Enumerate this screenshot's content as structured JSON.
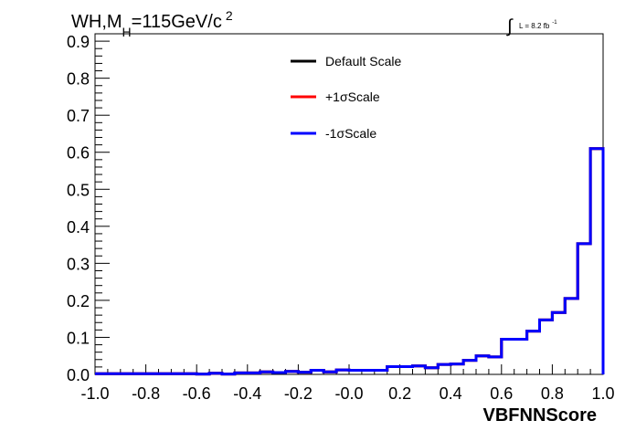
{
  "chart_data": {
    "type": "line",
    "title": "WH,M",
    "title_sub": "H",
    "title_rest": "=115GeV/c",
    "title_sup": "2",
    "annotation": {
      "integral_symbol": "∫",
      "text": "L = 8.2 fb",
      "superscript": "-1"
    },
    "xlabel": "VBFNNScore",
    "ylabel": "",
    "xlim": [
      -1.0,
      1.0
    ],
    "ylim": [
      0.0,
      0.92
    ],
    "x_tick_labels": [
      "-1.0",
      "-0.8",
      "-0.6",
      "-0.4",
      "-0.2",
      "-0.0",
      "0.2",
      "0.4",
      "0.6",
      "0.8",
      "1.0"
    ],
    "y_tick_labels": [
      "0.0",
      "0.1",
      "0.2",
      "0.3",
      "0.4",
      "0.5",
      "0.6",
      "0.7",
      "0.8",
      "0.9"
    ],
    "grid": false,
    "legend_position": "top-center",
    "bin_edges": [
      -1.0,
      -0.95,
      -0.9,
      -0.85,
      -0.8,
      -0.75,
      -0.7,
      -0.65,
      -0.6,
      -0.55,
      -0.5,
      -0.45,
      -0.4,
      -0.35,
      -0.3,
      -0.25,
      -0.2,
      -0.15,
      -0.1,
      -0.05,
      0.0,
      0.05,
      0.1,
      0.15,
      0.2,
      0.25,
      0.3,
      0.35,
      0.4,
      0.45,
      0.5,
      0.55,
      0.6,
      0.65,
      0.7,
      0.75,
      0.8,
      0.85,
      0.9,
      0.95,
      1.0
    ],
    "series": [
      {
        "name": "Default Scale",
        "color": "#000000",
        "values": [
          0.002,
          0.002,
          0.002,
          0.002,
          0.002,
          0.002,
          0.002,
          0.002,
          0.001,
          0.003,
          0.001,
          0.004,
          0.004,
          0.007,
          0.005,
          0.008,
          0.006,
          0.011,
          0.007,
          0.012,
          0.011,
          0.011,
          0.011,
          0.021,
          0.021,
          0.023,
          0.018,
          0.027,
          0.028,
          0.038,
          0.05,
          0.047,
          0.095,
          0.095,
          0.117,
          0.147,
          0.167,
          0.205,
          0.353,
          0.61
        ]
      },
      {
        "name": "+1σScale",
        "color": "#ff0000",
        "values": [
          0.002,
          0.002,
          0.002,
          0.002,
          0.002,
          0.002,
          0.002,
          0.002,
          0.001,
          0.003,
          0.001,
          0.004,
          0.004,
          0.007,
          0.005,
          0.008,
          0.006,
          0.011,
          0.007,
          0.012,
          0.011,
          0.011,
          0.011,
          0.021,
          0.021,
          0.023,
          0.018,
          0.027,
          0.028,
          0.038,
          0.05,
          0.047,
          0.095,
          0.095,
          0.117,
          0.147,
          0.167,
          0.205,
          0.353,
          0.61
        ]
      },
      {
        "name": "-1σScale",
        "color": "#0000ff",
        "values": [
          0.002,
          0.002,
          0.002,
          0.002,
          0.002,
          0.002,
          0.002,
          0.002,
          0.001,
          0.003,
          0.001,
          0.004,
          0.004,
          0.007,
          0.005,
          0.008,
          0.006,
          0.011,
          0.007,
          0.012,
          0.011,
          0.011,
          0.011,
          0.021,
          0.021,
          0.023,
          0.018,
          0.027,
          0.028,
          0.038,
          0.05,
          0.047,
          0.095,
          0.095,
          0.117,
          0.147,
          0.167,
          0.205,
          0.353,
          0.61
        ]
      }
    ]
  }
}
